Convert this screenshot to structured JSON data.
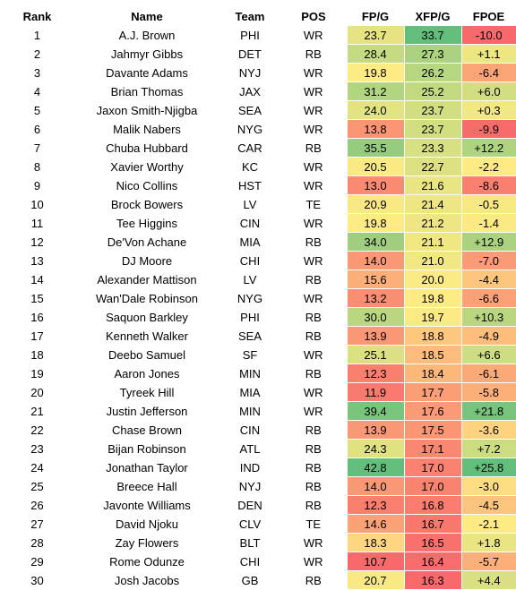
{
  "headers": [
    "Rank",
    "Name",
    "Team",
    "POS",
    "FP/G",
    "XFP/G",
    "FPOE"
  ],
  "rows": [
    {
      "rank": "1",
      "name": "A.J. Brown",
      "team": "PHI",
      "pos": "WR",
      "fpg": "23.7",
      "xfpg": "33.7",
      "fpoe": "-10.0"
    },
    {
      "rank": "2",
      "name": "Jahmyr Gibbs",
      "team": "DET",
      "pos": "RB",
      "fpg": "28.4",
      "xfpg": "27.3",
      "fpoe": "+1.1"
    },
    {
      "rank": "3",
      "name": "Davante Adams",
      "team": "NYJ",
      "pos": "WR",
      "fpg": "19.8",
      "xfpg": "26.2",
      "fpoe": "-6.4"
    },
    {
      "rank": "4",
      "name": "Brian Thomas",
      "team": "JAX",
      "pos": "WR",
      "fpg": "31.2",
      "xfpg": "25.2",
      "fpoe": "+6.0"
    },
    {
      "rank": "5",
      "name": "Jaxon Smith-Njigba",
      "team": "SEA",
      "pos": "WR",
      "fpg": "24.0",
      "xfpg": "23.7",
      "fpoe": "+0.3"
    },
    {
      "rank": "6",
      "name": "Malik Nabers",
      "team": "NYG",
      "pos": "WR",
      "fpg": "13.8",
      "xfpg": "23.7",
      "fpoe": "-9.9"
    },
    {
      "rank": "7",
      "name": "Chuba Hubbard",
      "team": "CAR",
      "pos": "RB",
      "fpg": "35.5",
      "xfpg": "23.3",
      "fpoe": "+12.2"
    },
    {
      "rank": "8",
      "name": "Xavier Worthy",
      "team": "KC",
      "pos": "WR",
      "fpg": "20.5",
      "xfpg": "22.7",
      "fpoe": "-2.2"
    },
    {
      "rank": "9",
      "name": "Nico Collins",
      "team": "HST",
      "pos": "WR",
      "fpg": "13.0",
      "xfpg": "21.6",
      "fpoe": "-8.6"
    },
    {
      "rank": "10",
      "name": "Brock Bowers",
      "team": "LV",
      "pos": "TE",
      "fpg": "20.9",
      "xfpg": "21.4",
      "fpoe": "-0.5"
    },
    {
      "rank": "11",
      "name": "Tee Higgins",
      "team": "CIN",
      "pos": "WR",
      "fpg": "19.8",
      "xfpg": "21.2",
      "fpoe": "-1.4"
    },
    {
      "rank": "12",
      "name": "De'Von Achane",
      "team": "MIA",
      "pos": "RB",
      "fpg": "34.0",
      "xfpg": "21.1",
      "fpoe": "+12.9"
    },
    {
      "rank": "13",
      "name": "DJ Moore",
      "team": "CHI",
      "pos": "WR",
      "fpg": "14.0",
      "xfpg": "21.0",
      "fpoe": "-7.0"
    },
    {
      "rank": "14",
      "name": "Alexander Mattison",
      "team": "LV",
      "pos": "RB",
      "fpg": "15.6",
      "xfpg": "20.0",
      "fpoe": "-4.4"
    },
    {
      "rank": "15",
      "name": "Wan'Dale Robinson",
      "team": "NYG",
      "pos": "WR",
      "fpg": "13.2",
      "xfpg": "19.8",
      "fpoe": "-6.6"
    },
    {
      "rank": "16",
      "name": "Saquon Barkley",
      "team": "PHI",
      "pos": "RB",
      "fpg": "30.0",
      "xfpg": "19.7",
      "fpoe": "+10.3"
    },
    {
      "rank": "17",
      "name": "Kenneth Walker",
      "team": "SEA",
      "pos": "RB",
      "fpg": "13.9",
      "xfpg": "18.8",
      "fpoe": "-4.9"
    },
    {
      "rank": "18",
      "name": "Deebo Samuel",
      "team": "SF",
      "pos": "WR",
      "fpg": "25.1",
      "xfpg": "18.5",
      "fpoe": "+6.6"
    },
    {
      "rank": "19",
      "name": "Aaron Jones",
      "team": "MIN",
      "pos": "RB",
      "fpg": "12.3",
      "xfpg": "18.4",
      "fpoe": "-6.1"
    },
    {
      "rank": "20",
      "name": "Tyreek Hill",
      "team": "MIA",
      "pos": "WR",
      "fpg": "11.9",
      "xfpg": "17.7",
      "fpoe": "-5.8"
    },
    {
      "rank": "21",
      "name": "Justin Jefferson",
      "team": "MIN",
      "pos": "WR",
      "fpg": "39.4",
      "xfpg": "17.6",
      "fpoe": "+21.8"
    },
    {
      "rank": "22",
      "name": "Chase Brown",
      "team": "CIN",
      "pos": "RB",
      "fpg": "13.9",
      "xfpg": "17.5",
      "fpoe": "-3.6"
    },
    {
      "rank": "23",
      "name": "Bijan Robinson",
      "team": "ATL",
      "pos": "RB",
      "fpg": "24.3",
      "xfpg": "17.1",
      "fpoe": "+7.2"
    },
    {
      "rank": "24",
      "name": "Jonathan Taylor",
      "team": "IND",
      "pos": "RB",
      "fpg": "42.8",
      "xfpg": "17.0",
      "fpoe": "+25.8"
    },
    {
      "rank": "25",
      "name": "Breece Hall",
      "team": "NYJ",
      "pos": "RB",
      "fpg": "14.0",
      "xfpg": "17.0",
      "fpoe": "-3.0"
    },
    {
      "rank": "26",
      "name": "Javonte Williams",
      "team": "DEN",
      "pos": "RB",
      "fpg": "12.3",
      "xfpg": "16.8",
      "fpoe": "-4.5"
    },
    {
      "rank": "27",
      "name": "David Njoku",
      "team": "CLV",
      "pos": "TE",
      "fpg": "14.6",
      "xfpg": "16.7",
      "fpoe": "-2.1"
    },
    {
      "rank": "28",
      "name": "Zay Flowers",
      "team": "BLT",
      "pos": "WR",
      "fpg": "18.3",
      "xfpg": "16.5",
      "fpoe": "+1.8"
    },
    {
      "rank": "29",
      "name": "Rome Odunze",
      "team": "CHI",
      "pos": "WR",
      "fpg": "10.7",
      "xfpg": "16.4",
      "fpoe": "-5.7"
    },
    {
      "rank": "30",
      "name": "Josh Jacobs",
      "team": "GB",
      "pos": "RB",
      "fpg": "20.7",
      "xfpg": "16.3",
      "fpoe": "+4.4"
    }
  ],
  "color_scale": {
    "low": "#f8696b",
    "mid": "#ffeb84",
    "high": "#63be7b"
  }
}
